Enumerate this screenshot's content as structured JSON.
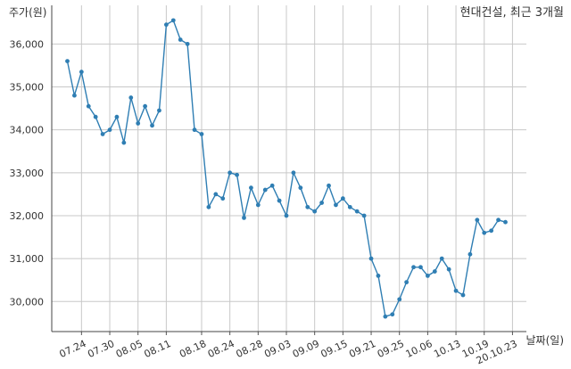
{
  "chart_data": {
    "type": "line",
    "title": "현대건설, 최근 3개월",
    "ylabel": "주가(원)",
    "xlabel": "날짜(일)",
    "ylim": [
      29300,
      36900
    ],
    "yticks": [
      30000,
      31000,
      32000,
      33000,
      34000,
      35000,
      36000
    ],
    "ytick_labels": [
      "30,000",
      "31,000",
      "32,000",
      "33,000",
      "34,000",
      "35,000",
      "36,000"
    ],
    "x_tick_labels": [
      "07.24",
      "07.30",
      "08.05",
      "08.11",
      "08.18",
      "08.24",
      "08.28",
      "09.03",
      "09.09",
      "09.15",
      "09.21",
      "09.25",
      "10.06",
      "10.13",
      "10.19",
      "20.10.23"
    ],
    "x_tick_index": [
      2,
      6,
      10,
      14,
      19,
      23,
      27,
      31,
      35,
      39,
      43,
      47,
      51,
      55,
      59,
      63
    ],
    "grid": true,
    "series": [
      {
        "color": "#2f7eb3",
        "values": [
          35600,
          34800,
          35350,
          34550,
          34300,
          33900,
          34000,
          34300,
          33700,
          34750,
          34150,
          34550,
          34100,
          34450,
          36450,
          36550,
          36100,
          36000,
          34000,
          33900,
          32200,
          32500,
          32400,
          33000,
          32950,
          31950,
          32650,
          32250,
          32600,
          32700,
          32350,
          32000,
          33000,
          32650,
          32200,
          32100,
          32300,
          32700,
          32250,
          32400,
          32200,
          32100,
          32000,
          31000,
          30600,
          29650,
          29700,
          30050,
          30450,
          30800,
          30800,
          30600,
          30700,
          31000,
          30750,
          30250,
          30150,
          31100,
          31900,
          31600,
          31650,
          31900,
          31850
        ]
      }
    ]
  }
}
